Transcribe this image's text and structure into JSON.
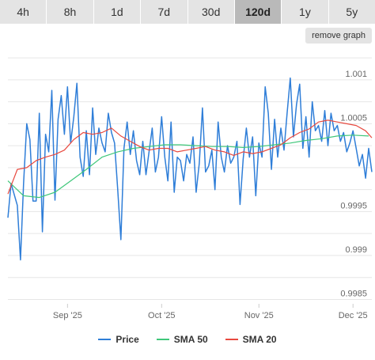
{
  "ranges": [
    "4h",
    "8h",
    "1d",
    "7d",
    "30d",
    "120d",
    "1y",
    "5y"
  ],
  "active_range": "120d",
  "remove_graph_label": "remove graph",
  "colors": {
    "price": "#2f7ed8",
    "sma50": "#3fc77a",
    "sma20": "#e8493f"
  },
  "chart_data": {
    "type": "line",
    "ylim": [
      0.99845,
      1.00135
    ],
    "xlim": [
      "2025-08-13",
      "2025-12-07"
    ],
    "yticks": [
      0.9985,
      0.999,
      0.9995,
      1.0005,
      1.001
    ],
    "xticks": [
      {
        "date": "2025-09-01",
        "label": "Sep '25"
      },
      {
        "date": "2025-10-01",
        "label": "Oct '25"
      },
      {
        "date": "2025-11-01",
        "label": "Nov '25"
      },
      {
        "date": "2025-12-01",
        "label": "Dec '25"
      }
    ],
    "legend": [
      "Price",
      "SMA 50",
      "SMA 20"
    ],
    "legend_position": "bottom",
    "grid": true,
    "series": [
      {
        "name": "Price",
        "x": [
          "2025-08-13",
          "2025-08-14",
          "2025-08-16",
          "2025-08-17",
          "2025-08-18",
          "2025-08-19",
          "2025-08-20",
          "2025-08-21",
          "2025-08-22",
          "2025-08-23",
          "2025-08-24",
          "2025-08-25",
          "2025-08-26",
          "2025-08-27",
          "2025-08-28",
          "2025-08-29",
          "2025-08-30",
          "2025-08-31",
          "2025-09-01",
          "2025-09-02",
          "2025-09-03",
          "2025-09-04",
          "2025-09-05",
          "2025-09-06",
          "2025-09-07",
          "2025-09-08",
          "2025-09-09",
          "2025-09-10",
          "2025-09-11",
          "2025-09-12",
          "2025-09-13",
          "2025-09-14",
          "2025-09-15",
          "2025-09-16",
          "2025-09-17",
          "2025-09-18",
          "2025-09-19",
          "2025-09-20",
          "2025-09-21",
          "2025-09-22",
          "2025-09-23",
          "2025-09-24",
          "2025-09-25",
          "2025-09-26",
          "2025-09-27",
          "2025-09-28",
          "2025-09-29",
          "2025-09-30",
          "2025-10-01",
          "2025-10-02",
          "2025-10-03",
          "2025-10-04",
          "2025-10-05",
          "2025-10-06",
          "2025-10-07",
          "2025-10-08",
          "2025-10-09",
          "2025-10-10",
          "2025-10-11",
          "2025-10-12",
          "2025-10-13",
          "2025-10-14",
          "2025-10-15",
          "2025-10-16",
          "2025-10-17",
          "2025-10-18",
          "2025-10-19",
          "2025-10-20",
          "2025-10-21",
          "2025-10-22",
          "2025-10-23",
          "2025-10-24",
          "2025-10-25",
          "2025-10-26",
          "2025-10-27",
          "2025-10-28",
          "2025-10-29",
          "2025-10-30",
          "2025-10-31",
          "2025-11-01",
          "2025-11-02",
          "2025-11-03",
          "2025-11-04",
          "2025-11-05",
          "2025-11-06",
          "2025-11-07",
          "2025-11-08",
          "2025-11-09",
          "2025-11-10",
          "2025-11-11",
          "2025-11-12",
          "2025-11-13",
          "2025-11-14",
          "2025-11-15",
          "2025-11-16",
          "2025-11-17",
          "2025-11-18",
          "2025-11-19",
          "2025-11-20",
          "2025-11-21",
          "2025-11-22",
          "2025-11-23",
          "2025-11-24",
          "2025-11-25",
          "2025-11-26",
          "2025-11-27",
          "2025-11-28",
          "2025-11-29",
          "2025-11-30",
          "2025-12-01",
          "2025-12-02",
          "2025-12-03",
          "2025-12-04",
          "2025-12-05",
          "2025-12-06",
          "2025-12-07"
        ],
        "y": [
          0.99943,
          0.99982,
          0.99957,
          0.99895,
          0.99982,
          1.0005,
          1.00032,
          0.99962,
          0.99962,
          1.00062,
          0.99927,
          1.00038,
          1.00018,
          1.00088,
          0.99963,
          1.00055,
          1.00082,
          1.00038,
          1.00092,
          1.00028,
          1.00058,
          1.00096,
          1.00012,
          0.9999,
          1.00042,
          0.99992,
          1.00068,
          1.00015,
          1.00045,
          1.00028,
          1.00018,
          1.00062,
          1.0004,
          1.00028,
          0.99975,
          0.99918,
          1.00022,
          1.00052,
          1.00015,
          1.00042,
          1.00008,
          0.99992,
          1.0003,
          0.99992,
          1.00018,
          1.00045,
          0.99995,
          1.00012,
          1.00058,
          1.00012,
          0.99985,
          1.00052,
          0.99972,
          1.00012,
          1.00008,
          0.99985,
          1.00015,
          1.00005,
          1.00035,
          0.99972,
          1.00005,
          1.00068,
          0.99995,
          1.00002,
          1.0002,
          0.99975,
          1.00052,
          1.00012,
          0.99995,
          1.00025,
          1.00005,
          1.00012,
          1.0003,
          0.99958,
          1.0001,
          1.00045,
          1.00012,
          1.00035,
          0.99968,
          1.00028,
          1.00012,
          1.00092,
          1.00062,
          0.99998,
          1.00055,
          1.00012,
          1.00045,
          1.0002,
          1.00062,
          1.00102,
          1.00035,
          1.00072,
          1.00095,
          1.00022,
          1.00058,
          1.00012,
          1.00075,
          1.00042,
          1.00048,
          1.0003,
          1.00065,
          1.00025,
          1.00062,
          1.00042,
          1.00048,
          1.0003,
          1.0004,
          1.00018,
          1.00028,
          1.00042,
          1.00022,
          1.00002,
          1.00015,
          0.99988,
          1.00022,
          0.99995
        ]
      },
      {
        "name": "SMA 50",
        "x": [
          "2025-08-13",
          "2025-08-18",
          "2025-08-23",
          "2025-08-28",
          "2025-09-02",
          "2025-09-07",
          "2025-09-12",
          "2025-09-17",
          "2025-09-22",
          "2025-09-27",
          "2025-10-02",
          "2025-10-07",
          "2025-10-12",
          "2025-10-17",
          "2025-10-22",
          "2025-10-27",
          "2025-11-01",
          "2025-11-06",
          "2025-11-11",
          "2025-11-16",
          "2025-11-21",
          "2025-11-26",
          "2025-12-01",
          "2025-12-06"
        ],
        "y": [
          0.99985,
          0.99968,
          0.99966,
          0.99972,
          0.99985,
          0.99998,
          1.00012,
          1.00018,
          1.00022,
          1.00024,
          1.00026,
          1.00026,
          1.00025,
          1.00024,
          1.00024,
          1.00023,
          1.00024,
          1.00026,
          1.00028,
          1.00031,
          1.00033,
          1.00036,
          1.00037,
          1.00036
        ]
      },
      {
        "name": "SMA 20",
        "x": [
          "2025-08-13",
          "2025-08-16",
          "2025-08-19",
          "2025-08-22",
          "2025-08-25",
          "2025-08-28",
          "2025-08-31",
          "2025-09-03",
          "2025-09-06",
          "2025-09-09",
          "2025-09-12",
          "2025-09-15",
          "2025-09-18",
          "2025-09-21",
          "2025-09-24",
          "2025-09-27",
          "2025-09-30",
          "2025-10-03",
          "2025-10-06",
          "2025-10-09",
          "2025-10-12",
          "2025-10-15",
          "2025-10-18",
          "2025-10-21",
          "2025-10-24",
          "2025-10-27",
          "2025-10-30",
          "2025-11-02",
          "2025-11-05",
          "2025-11-08",
          "2025-11-11",
          "2025-11-14",
          "2025-11-17",
          "2025-11-20",
          "2025-11-23",
          "2025-11-26",
          "2025-11-29",
          "2025-12-02",
          "2025-12-05",
          "2025-12-07"
        ],
        "y": [
          0.9997,
          0.99998,
          1.0,
          1.00008,
          1.00012,
          1.00015,
          1.0002,
          1.00032,
          1.0004,
          1.00038,
          1.0004,
          1.00045,
          1.00036,
          1.0003,
          1.00024,
          1.0002,
          1.00022,
          1.00022,
          1.00018,
          1.0002,
          1.00022,
          1.00024,
          1.0002,
          1.00018,
          1.00014,
          1.00018,
          1.00016,
          1.00018,
          1.00022,
          1.00026,
          1.00034,
          1.0004,
          1.00044,
          1.00052,
          1.00054,
          1.00052,
          1.0005,
          1.00048,
          1.00042,
          1.00034
        ]
      }
    ]
  }
}
